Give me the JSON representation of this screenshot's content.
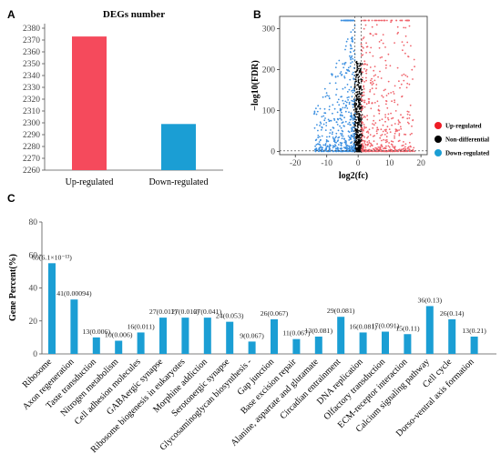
{
  "panels": {
    "a": "A",
    "b": "B",
    "c": "C"
  },
  "chart_data": [
    {
      "type": "bar",
      "title": "DEGs number",
      "categories": [
        "Up-regulated",
        "Down-regulated"
      ],
      "values": [
        2373,
        2299
      ],
      "colors": [
        "#f54a5c",
        "#1b9ed4"
      ],
      "ylim": [
        2260,
        2380
      ],
      "yticks": [
        2260,
        2270,
        2280,
        2290,
        2300,
        2310,
        2320,
        2330,
        2340,
        2350,
        2360,
        2370,
        2380
      ],
      "grid": false
    },
    {
      "type": "scatter",
      "xlabel": "log2(fc)",
      "ylabel": "−log10(FDR)",
      "xlim": [
        -25,
        22
      ],
      "ylim": [
        -8,
        330
      ],
      "xticks": [
        -20,
        -10,
        0,
        10,
        20
      ],
      "yticks": [
        0,
        100,
        200,
        300
      ],
      "y_cap": 320,
      "thresholds": {
        "x": [
          -1,
          1
        ],
        "y": 1.3
      },
      "legend_position": "right",
      "series": [
        {
          "name": "Up-regulated",
          "color": "#f0646c",
          "legend_color": "#ee1c25",
          "count": 2373,
          "x_range": [
            1,
            18
          ]
        },
        {
          "name": "Non-differential",
          "color": "#000000",
          "legend_color": "#000000",
          "x_range": [
            -1.5,
            1.5
          ]
        },
        {
          "name": "Down-regulated",
          "color": "#3b8fe0",
          "legend_color": "#1b9ed4",
          "count": 2299,
          "x_range": [
            -15,
            -1
          ]
        }
      ]
    },
    {
      "type": "bar",
      "ylabel": "Gene Percent(%)",
      "ylim": [
        0,
        80
      ],
      "yticks": [
        0,
        20,
        40,
        60,
        80
      ],
      "grid": false,
      "color": "#1b9ed4",
      "categories": [
        "Ribosome",
        "Axon regeneration",
        "Taste transduction",
        "Nitrogen metabolism",
        "Cell adhesion molecules",
        "GABAergic synapse",
        "Ribosome biogenesis in eukaryotes",
        "Morphine addiction",
        "Serotonergic synapse",
        "Glycosaminoglycan biosynthesis -",
        "Gap junction",
        "Base excision repair",
        "Alanine, aspartate and glutamate",
        "Circadian entrainment",
        "DNA replication",
        "Olfactory transduction",
        "ECM-receptor interaction",
        "Calcium signaling pathway",
        "Cell cycle",
        "Dorso-ventral axis formation"
      ],
      "values": [
        55,
        33,
        10,
        8,
        13,
        22,
        22,
        22,
        19.5,
        7.5,
        21,
        9,
        10.5,
        22.5,
        13,
        13.5,
        12,
        29,
        21,
        10.5
      ],
      "labels": [
        "69(6.1×10⁻¹³)",
        "41(0.00094)",
        "13(0.006)",
        "10(0.006)",
        "16(0.011)",
        "27(0.011)",
        "27(0.016)",
        "27(0.041)",
        "24(0.053)",
        "9(0.067)",
        "26(0.067)",
        "11(0.067)",
        "13(0.081)",
        "29(0.081)",
        "16(0.081)",
        "17(0.091)",
        "15(0.11)",
        "36(0.13)",
        "26(0.14)",
        "13(0.21)"
      ]
    }
  ]
}
